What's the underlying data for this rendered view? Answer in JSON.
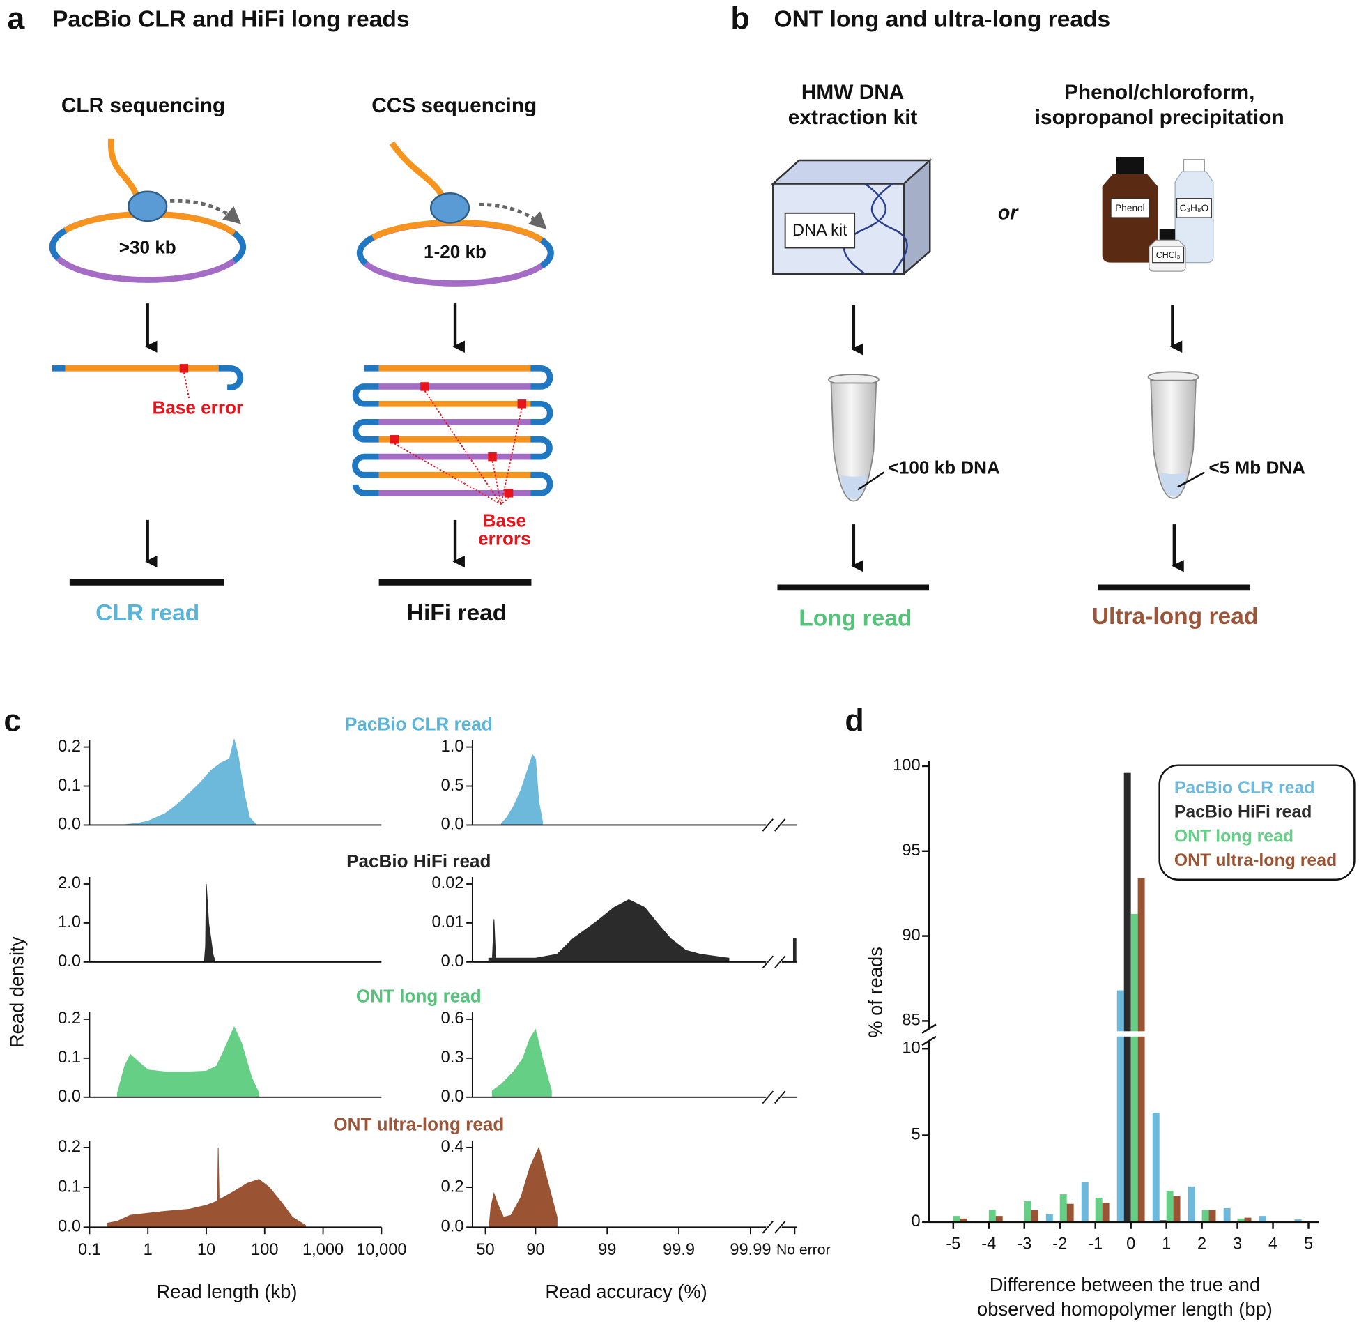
{
  "panels": [
    "a",
    "b",
    "c",
    "d"
  ],
  "panel_a": {
    "title": "PacBio CLR and HiFi long reads",
    "clr": {
      "heading": "CLR sequencing",
      "insert": ">30 kb",
      "error": "Base error",
      "read": "CLR read"
    },
    "ccs": {
      "heading": "CCS sequencing",
      "insert": "1-20 kb",
      "errors": [
        "Base",
        "errors"
      ],
      "read": "HiFi read"
    }
  },
  "panel_b": {
    "title": "ONT long and ultra-long reads",
    "or": "or",
    "kit": {
      "heading": [
        "HMW DNA",
        "extraction kit"
      ],
      "box_label": "DNA kit",
      "dna": "<100 kb DNA",
      "read": "Long read"
    },
    "phenol": {
      "heading": [
        "Phenol/chloroform,",
        "isopropanol precipitation"
      ],
      "bottles": [
        "Phenol",
        "C₃H₈O",
        "CHCl₃"
      ],
      "dna": "<5 Mb DNA",
      "read": "Ultra-long read"
    }
  },
  "panel_c": {
    "ylabel": "Read density"
  },
  "chart_data": [
    {
      "type": "area",
      "title": "PacBio CLR read",
      "title_color": "#5ab4d8",
      "color": "#6cb9dc",
      "xscale": "log",
      "xlim": [
        0.1,
        10000
      ],
      "ylim": [
        0,
        0.2
      ],
      "yticks": [
        {
          "value": 0,
          "label": "0.0"
        },
        0.1,
        0.2
      ],
      "x": [
        0.4,
        0.7,
        1,
        2,
        3,
        5,
        8,
        12,
        18,
        25,
        30,
        35,
        45,
        55,
        70
      ],
      "values": [
        0.001,
        0.005,
        0.01,
        0.03,
        0.05,
        0.08,
        0.11,
        0.14,
        0.16,
        0.17,
        0.22,
        0.18,
        0.08,
        0.02,
        0.003
      ]
    },
    {
      "type": "area",
      "color": "#6cb9dc",
      "xscale": "phred",
      "xlim": [
        50,
        99.99
      ],
      "ylim": [
        0,
        1
      ],
      "yticks": [
        {
          "value": 0,
          "label": "0.0"
        },
        0.5,
        {
          "value": 1,
          "label": "1.0"
        }
      ],
      "x": [
        70,
        75,
        80,
        84,
        87,
        89,
        90,
        91,
        92
      ],
      "values": [
        0.02,
        0.1,
        0.25,
        0.45,
        0.7,
        0.9,
        0.85,
        0.3,
        0.05
      ]
    },
    {
      "type": "area",
      "title": "PacBio HiFi read",
      "title_color": "#222222",
      "color": "#2b2b2b",
      "xscale": "log",
      "xlim": [
        0.1,
        10000
      ],
      "ylim": [
        0,
        2
      ],
      "yticks": [
        {
          "value": 0,
          "label": "0.0"
        },
        {
          "value": 1,
          "label": "1.0"
        },
        {
          "value": 2,
          "label": "2.0"
        }
      ],
      "x": [
        9.3,
        9.7,
        10,
        10.5,
        11,
        12,
        13,
        14
      ],
      "values": [
        0.05,
        0.4,
        2.0,
        1.5,
        1.0,
        0.6,
        0.2,
        0.05
      ]
    },
    {
      "type": "area",
      "color": "#2b2b2b",
      "xscale": "phred",
      "xlim": [
        50,
        99.99
      ],
      "ylim": [
        0,
        0.02
      ],
      "yticks": [
        {
          "value": 0,
          "label": "0.0"
        },
        0.01,
        0.02
      ],
      "x": [
        55,
        60,
        62,
        64,
        80,
        90,
        95,
        97,
        98.5,
        99.2,
        99.5,
        99.7,
        99.8,
        99.87,
        99.92,
        99.95,
        99.98,
        null,
        100
      ],
      "values": [
        0.001,
        0.001,
        0.011,
        0.001,
        0.001,
        0.001,
        0.002,
        0.006,
        0.01,
        0.014,
        0.016,
        0.014,
        0.01,
        0.006,
        0.003,
        0.002,
        0.001,
        null,
        0.006
      ]
    },
    {
      "type": "area",
      "title": "ONT long read",
      "title_color": "#55c47a",
      "color": "#66cf86",
      "xscale": "log",
      "xlim": [
        0.1,
        10000
      ],
      "ylim": [
        0,
        0.2
      ],
      "yticks": [
        {
          "value": 0,
          "label": "0.0"
        },
        0.1,
        0.2
      ],
      "x": [
        0.3,
        0.4,
        0.5,
        0.7,
        1,
        2,
        5,
        10,
        15,
        20,
        30,
        40,
        60,
        80
      ],
      "values": [
        0.01,
        0.08,
        0.11,
        0.09,
        0.07,
        0.065,
        0.065,
        0.067,
        0.08,
        0.12,
        0.18,
        0.14,
        0.05,
        0.01
      ]
    },
    {
      "type": "area",
      "color": "#66cf86",
      "xscale": "phred",
      "xlim": [
        50,
        99.99
      ],
      "ylim": [
        0,
        0.6
      ],
      "yticks": [
        {
          "value": 0,
          "label": "0.0"
        },
        0.3,
        0.6
      ],
      "x": [
        60,
        70,
        80,
        85,
        88,
        90,
        92,
        94
      ],
      "values": [
        0.05,
        0.1,
        0.2,
        0.3,
        0.45,
        0.52,
        0.3,
        0.05
      ]
    },
    {
      "type": "area",
      "title": "ONT ultra-long read",
      "title_color": "#9b5538",
      "color": "#9a5434",
      "xscale": "log",
      "xlim": [
        0.1,
        10000
      ],
      "ylim": [
        0,
        0.2
      ],
      "yticks": [
        {
          "value": 0,
          "label": "0.0"
        },
        0.1,
        0.2
      ],
      "xticks": [
        0.1,
        1,
        10,
        100,
        {
          "value": 1000,
          "label": "1,000"
        },
        {
          "value": 10000,
          "label": "10,000"
        }
      ],
      "xlabel": "Read length (kb)",
      "x": [
        0.2,
        0.3,
        0.5,
        1,
        2,
        5,
        10,
        15,
        15.6,
        16,
        16.6,
        17,
        30,
        50,
        80,
        120,
        200,
        300,
        500
      ],
      "values": [
        0.01,
        0.015,
        0.03,
        0.035,
        0.04,
        0.045,
        0.055,
        0.065,
        0.065,
        0.2,
        0.07,
        0.07,
        0.09,
        0.11,
        0.12,
        0.1,
        0.06,
        0.025,
        0.005
      ]
    },
    {
      "type": "area",
      "color": "#9a5434",
      "xscale": "phred",
      "xlim": [
        50,
        99.99
      ],
      "ylim": [
        0,
        0.4
      ],
      "yticks": [
        {
          "value": 0,
          "label": "0.0"
        },
        0.2,
        0.4
      ],
      "xticks": [
        50,
        90,
        99,
        99.9,
        99.99,
        {
          "value": 100,
          "label": "No error"
        }
      ],
      "xlabel": "Read accuracy (%)",
      "x": [
        56,
        58,
        62,
        66,
        72,
        78,
        84,
        88,
        91,
        93,
        95
      ],
      "values": [
        0.02,
        0.1,
        0.17,
        0.12,
        0.05,
        0.06,
        0.15,
        0.3,
        0.4,
        0.25,
        0.05
      ]
    },
    {
      "type": "bar",
      "categories": [
        "-5",
        "-4",
        "-3",
        "-2",
        "-1",
        "0",
        "1",
        "2",
        "3",
        "4",
        "5"
      ],
      "ylim": [
        0,
        100
      ],
      "yticks": [
        0,
        5,
        10,
        85,
        90,
        95,
        100
      ],
      "axis_break": [
        10,
        85
      ],
      "ylabel": "% of reads",
      "xlabel": [
        "Difference between the true and",
        "observed homopolymer length (bp)"
      ],
      "legend": "upper right",
      "series": [
        {
          "name": "PacBio CLR read",
          "color": "#6cb9dc",
          "values": [
            0,
            0,
            0,
            0.45,
            2.3,
            86.8,
            6.3,
            2.05,
            0.8,
            0.35,
            0.15
          ]
        },
        {
          "name": "PacBio HiFi read",
          "color": "#2b2b2b",
          "values": [
            0,
            0,
            0,
            0,
            0,
            99.6,
            0.1,
            0,
            0,
            0,
            0
          ]
        },
        {
          "name": "ONT long read",
          "color": "#66cf86",
          "values": [
            0.35,
            0.7,
            1.2,
            1.6,
            1.4,
            91.3,
            1.8,
            0.7,
            0.2,
            0,
            0
          ]
        },
        {
          "name": "ONT ultra-long read",
          "color": "#9a5434",
          "values": [
            0.2,
            0.35,
            0.7,
            1.05,
            1.1,
            93.4,
            1.5,
            0.7,
            0.25,
            0,
            0
          ]
        }
      ]
    }
  ]
}
